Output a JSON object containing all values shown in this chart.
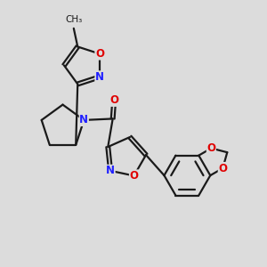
{
  "bg_color": "#dcdcdc",
  "bond_color": "#1a1a1a",
  "N_color": "#2020ff",
  "O_color": "#e00000",
  "line_width": 1.6,
  "font_size_atom": 8.5,
  "fig_size": [
    3.0,
    3.0
  ],
  "dpi": 100,
  "xlim": [
    0,
    10
  ],
  "ylim": [
    0,
    10
  ]
}
